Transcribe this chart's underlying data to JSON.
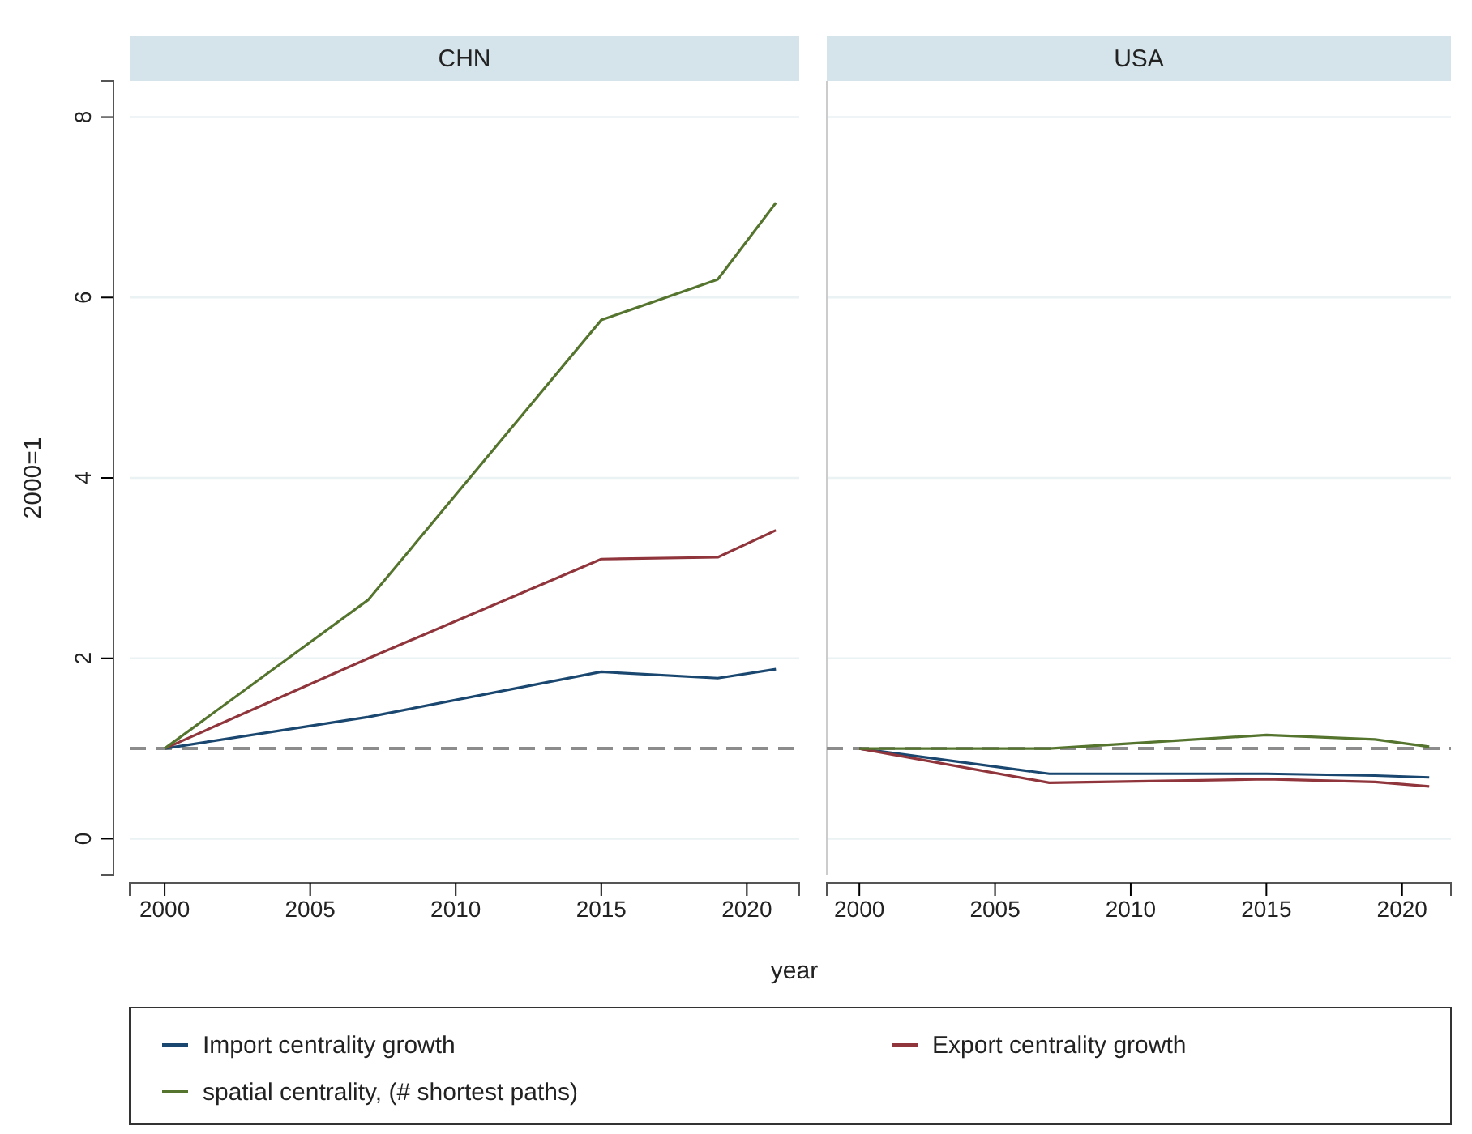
{
  "chart_data": [
    {
      "type": "line",
      "title": "CHN",
      "ylabel": "2000=1",
      "x": [
        2000,
        2007,
        2015,
        2019,
        2021
      ],
      "xlim": [
        1998.8,
        2021.8
      ],
      "xticks": [
        2000,
        2005,
        2010,
        2015,
        2020
      ],
      "ylim": [
        -0.4,
        8.4
      ],
      "yticks": [
        0,
        2,
        4,
        6,
        8
      ],
      "grid": "y",
      "legend": "bottom",
      "ref_lines": [
        {
          "axis": "y",
          "value": 1,
          "color": "#8c8c8c",
          "line_style": "dashed"
        }
      ],
      "series": [
        {
          "name": "Import centrality growth",
          "color": "#1a476f",
          "values": [
            1,
            1.35,
            1.85,
            1.78,
            1.88
          ]
        },
        {
          "name": "Export centrality growth",
          "color": "#90353b",
          "values": [
            1,
            2.0,
            3.1,
            3.12,
            3.42
          ]
        },
        {
          "name": "spatial centrality, (# shortest paths)",
          "color": "#55752f",
          "values": [
            1,
            2.65,
            5.75,
            6.2,
            7.05
          ]
        }
      ]
    },
    {
      "type": "line",
      "title": "USA",
      "xlabel": "year",
      "x": [
        2000,
        2007,
        2015,
        2019,
        2021
      ],
      "xlim": [
        1998.8,
        2021.8
      ],
      "xticks": [
        2000,
        2005,
        2010,
        2015,
        2020
      ],
      "ylim": [
        -0.4,
        8.4
      ],
      "yticks": [
        0,
        2,
        4,
        6,
        8
      ],
      "tick_labels": "x",
      "grid": "y",
      "ref_lines": [
        {
          "axis": "y",
          "value": 1,
          "color": "#8c8c8c",
          "line_style": "dashed"
        }
      ],
      "series": [
        {
          "color": "#1a476f",
          "values": [
            1,
            0.72,
            0.72,
            0.7,
            0.68
          ]
        },
        {
          "color": "#90353b",
          "values": [
            1,
            0.62,
            0.66,
            0.63,
            0.58
          ]
        },
        {
          "color": "#55752f",
          "values": [
            1,
            1.0,
            1.15,
            1.1,
            1.02
          ]
        }
      ]
    }
  ]
}
